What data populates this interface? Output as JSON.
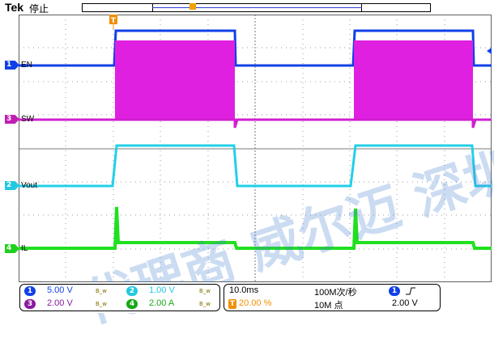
{
  "header": {
    "brand": "Tek",
    "run_state": "停止"
  },
  "channels": [
    {
      "number": "1",
      "label": "EN",
      "color": "#1040e8"
    },
    {
      "number": "3",
      "label": "SW",
      "color": "#c020b0"
    },
    {
      "number": "2",
      "label": "Vout",
      "color": "#22c8e0"
    },
    {
      "number": "4",
      "label": "IL",
      "color": "#20d020"
    }
  ],
  "trigger_marker": "T",
  "footer": {
    "ch1": {
      "number": "1",
      "scale": "5.00 V",
      "bw": "B_w"
    },
    "ch3": {
      "number": "3",
      "scale": "2.00 V",
      "bw": "B_w"
    },
    "ch2": {
      "number": "2",
      "scale": "1.00 V",
      "bw": "B_w"
    },
    "ch4": {
      "number": "4",
      "scale": "2.00 A",
      "bw": "B_w"
    },
    "timebase": "10.0ms",
    "trigger_position": "20.00 %",
    "sample_rate": "100M次/秒",
    "record_length": "10M 点",
    "trigger_source": "1",
    "trigger_slope_icon": "rising-edge-icon",
    "trigger_level": "2.00 V"
  },
  "watermark": {
    "text": "代理商 威尔迈 深圳科电"
  }
}
